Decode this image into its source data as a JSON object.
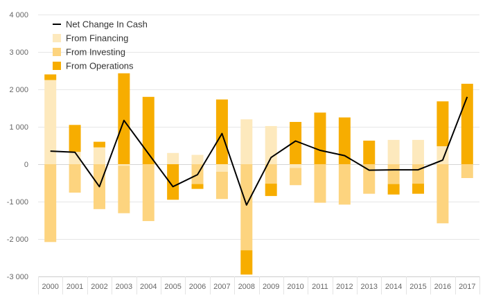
{
  "chart_data": {
    "type": "bar",
    "stacked": true,
    "title": "",
    "xlabel": "",
    "ylabel": "",
    "ylim": [
      -3000,
      4000
    ],
    "yticks": [
      -3000,
      -2000,
      -1000,
      0,
      1000,
      2000,
      3000,
      4000
    ],
    "ytick_labels": [
      "-3 000",
      "-2 000",
      "-1 000",
      "0",
      "1 000",
      "2 000",
      "3 000",
      "4 000"
    ],
    "grid": true,
    "legend_position": "top-left",
    "categories": [
      "2000",
      "2001",
      "2002",
      "2003",
      "2004",
      "2005",
      "2006",
      "2007",
      "2008",
      "2009",
      "2010",
      "2011",
      "2012",
      "2013",
      "2014",
      "2015",
      "2016",
      "2017"
    ],
    "series": [
      {
        "name": "From Financing",
        "kind": "bar",
        "color": "#fde9bd",
        "values": [
          2250,
          330,
          450,
          -40,
          0,
          300,
          250,
          -200,
          1200,
          1020,
          -100,
          0,
          0,
          0,
          650,
          650,
          480,
          0
        ]
      },
      {
        "name": "From Investing",
        "kind": "bar",
        "color": "#fdd47f",
        "values": [
          -2080,
          -760,
          -1200,
          -1270,
          -1520,
          0,
          -530,
          -730,
          -2300,
          -520,
          -460,
          -1030,
          -1080,
          -790,
          -530,
          -520,
          -1580,
          -370
        ]
      },
      {
        "name": "From Operations",
        "kind": "bar",
        "color": "#f7ad00",
        "values": [
          150,
          720,
          150,
          2430,
          1800,
          -950,
          -130,
          1730,
          -650,
          -330,
          1130,
          1380,
          1250,
          630,
          -280,
          -270,
          1200,
          2150
        ]
      },
      {
        "name": "Net Change In Cash",
        "kind": "line",
        "color": "#000000",
        "values": [
          350,
          320,
          -600,
          1170,
          280,
          -600,
          -280,
          820,
          -1090,
          180,
          620,
          370,
          230,
          -160,
          -150,
          -150,
          110,
          1800
        ]
      }
    ]
  }
}
